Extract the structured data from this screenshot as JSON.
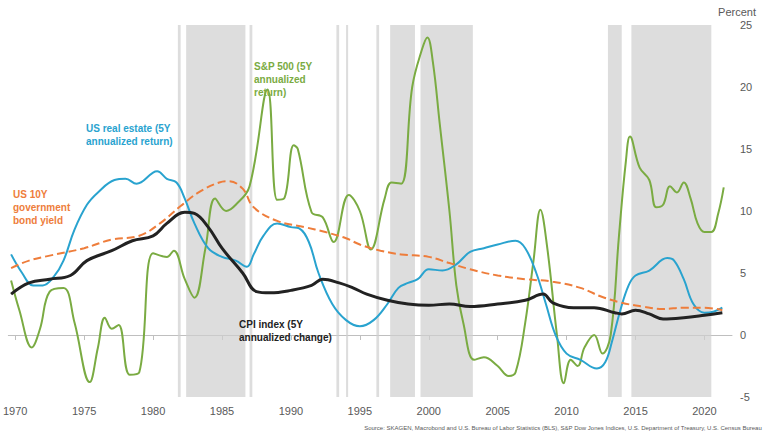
{
  "chart_data": {
    "type": "line",
    "y_label": "Percent",
    "source": "Source: SKAGEN, Macrobond and U.S. Bureau of Labor Statistics (BLS), S&P Dow Jones Indices, U.S. Department of Treasury, U.S. Census Bureau",
    "xlim": [
      1969.5,
      2022
    ],
    "xticks": [
      1970,
      1975,
      1980,
      1985,
      1990,
      1995,
      2000,
      2005,
      2010,
      2015,
      2020
    ],
    "ylim": [
      -5,
      25
    ],
    "yticks": [
      -5,
      0,
      5,
      10,
      15,
      20,
      25
    ],
    "grid": false,
    "shaded_periods": [
      [
        1981.8,
        1982.0
      ],
      [
        1982.4,
        1986.7
      ],
      [
        1987.0,
        1987.2
      ],
      [
        1993.3,
        1993.5
      ],
      [
        1994.0,
        1994.15
      ],
      [
        1996.2,
        1996.4
      ],
      [
        1997.2,
        1999.0
      ],
      [
        1999.4,
        2003.2
      ],
      [
        2013.0,
        2014.0
      ],
      [
        2014.7,
        2020.5
      ]
    ],
    "series": [
      {
        "name": "S&P 500 (5Y annualized return)",
        "color": "#7aab42",
        "line_style": "solid",
        "x": [
          1969.7,
          1970.3,
          1971.2,
          1971.8,
          1972.5,
          1973.5,
          1974.3,
          1975.4,
          1976.0,
          1976.5,
          1977.0,
          1977.5,
          1978.3,
          1979.0,
          1980.0,
          1981.0,
          1981.5,
          1982.3,
          1983.0,
          1983.8,
          1984.5,
          1985.3,
          1986.0,
          1987.0,
          1988.3,
          1989.0,
          1989.5,
          1990.2,
          1990.5,
          1991.5,
          1992.3,
          1993.1,
          1994.2,
          1995.0,
          1995.8,
          1996.8,
          1997.3,
          1998.0,
          1998.8,
          1999.5,
          1999.9,
          2000.3,
          2000.8,
          2001.5,
          2002.0,
          2002.5,
          2003.3,
          2004.0,
          2005.0,
          2005.8,
          2006.3,
          2007.0,
          2007.6,
          2008.1,
          2008.6,
          2009.3,
          2009.8,
          2010.3,
          2010.8,
          2011.3,
          2012.0,
          2012.6,
          2013.2,
          2013.8,
          2014.3,
          2014.6,
          2015.3,
          2016.0,
          2016.5,
          2017.0,
          2017.5,
          2018.0,
          2018.5,
          2019.0,
          2019.5,
          2020.0,
          2020.5,
          2021.0,
          2021.4
        ],
        "values": [
          4.4,
          2.0,
          -1.0,
          0.5,
          3.5,
          3.8,
          1.0,
          -3.8,
          -1.0,
          1.4,
          0.5,
          0.8,
          -3.2,
          -3.0,
          6.6,
          6.3,
          6.8,
          4.5,
          3.0,
          7.0,
          11.0,
          10.0,
          10.5,
          12.0,
          19.8,
          10.9,
          11.0,
          15.3,
          15.0,
          9.9,
          9.5,
          7.5,
          11.3,
          10.0,
          6.9,
          11.0,
          12.3,
          12.2,
          20.0,
          23.0,
          24.0,
          22.0,
          17.0,
          10.0,
          4.0,
          1.0,
          -2.0,
          -1.8,
          -2.5,
          -3.3,
          -3.0,
          1.0,
          6.0,
          10.1,
          7.0,
          0.0,
          -3.9,
          -2.0,
          -2.5,
          -1.0,
          0.0,
          -1.5,
          0.0,
          8.0,
          14.0,
          16.0,
          13.5,
          12.5,
          10.3,
          10.5,
          12.0,
          11.5,
          12.3,
          11.0,
          9.0,
          8.3,
          8.3,
          9.8,
          11.9
        ]
      },
      {
        "name": "US real estate (5Y annualized return)",
        "color": "#29a3cf",
        "line_style": "solid",
        "x": [
          1969.7,
          1970.5,
          1971.3,
          1972.0,
          1972.8,
          1973.5,
          1974.3,
          1975.2,
          1976.0,
          1977.2,
          1978.0,
          1978.8,
          1980.0,
          1980.3,
          1981.0,
          1981.7,
          1982.3,
          1983.0,
          1984.0,
          1985.0,
          1986.0,
          1986.8,
          1987.3,
          1988.0,
          1989.0,
          1990.0,
          1990.6,
          1991.3,
          1992.0,
          1993.0,
          1994.0,
          1995.0,
          1996.0,
          1997.0,
          1997.8,
          1998.5,
          1999.2,
          2000.0,
          2001.0,
          2002.0,
          2003.0,
          2004.0,
          2005.0,
          2006.3,
          2007.0,
          2007.8,
          2008.5,
          2009.2,
          2010.0,
          2011.0,
          2012.2,
          2012.8,
          2013.3,
          2013.9,
          2014.5,
          2015.0,
          2016.0,
          2017.3,
          2017.8,
          2018.5,
          2019.2,
          2020.0,
          2020.7,
          2021.3
        ],
        "values": [
          6.5,
          5.0,
          4.0,
          4.0,
          4.7,
          6.0,
          8.5,
          10.5,
          11.5,
          12.5,
          12.6,
          12.2,
          13.1,
          13.2,
          12.6,
          12.3,
          11.0,
          9.0,
          7.0,
          6.3,
          6.0,
          5.5,
          6.5,
          8.0,
          9.0,
          8.7,
          8.6,
          7.5,
          5.0,
          2.5,
          1.2,
          0.7,
          1.2,
          2.5,
          3.8,
          4.2,
          4.5,
          5.3,
          5.2,
          5.7,
          6.7,
          7.0,
          7.3,
          7.6,
          7.0,
          5.0,
          2.5,
          0.0,
          -1.5,
          -2.0,
          -2.7,
          -2.2,
          -0.5,
          2.0,
          4.0,
          4.8,
          5.2,
          6.2,
          6.0,
          4.5,
          2.5,
          1.8,
          1.9,
          2.2
        ]
      },
      {
        "name": "US 10Y government bond yield",
        "color": "#ee7d3b",
        "line_style": "dashed",
        "x": [
          1969.7,
          1971.0,
          1972.5,
          1975.0,
          1977.0,
          1979.0,
          1980.5,
          1982.0,
          1983.3,
          1984.8,
          1985.5,
          1986.5,
          1987.3,
          1989.0,
          1991.0,
          1992.5,
          1994.0,
          1995.0,
          1996.5,
          1998.0,
          2000.0,
          2001.5,
          2003.0,
          2005.0,
          2007.0,
          2009.0,
          2011.0,
          2012.5,
          2014.0,
          2015.5,
          2017.0,
          2018.5,
          2020.0,
          2021.3
        ],
        "values": [
          5.4,
          6.0,
          6.4,
          7.0,
          7.7,
          8.0,
          9.0,
          10.4,
          11.5,
          12.3,
          12.4,
          11.8,
          10.3,
          9.2,
          8.7,
          8.3,
          7.8,
          7.3,
          6.8,
          6.5,
          6.3,
          5.8,
          5.3,
          4.8,
          4.5,
          4.3,
          3.8,
          3.1,
          2.6,
          2.3,
          2.1,
          2.2,
          2.2,
          2.0
        ]
      },
      {
        "name": "CPI index (5Y annualized change)",
        "color": "#222222",
        "line_style": "solid",
        "x": [
          1969.7,
          1971.0,
          1972.5,
          1974.0,
          1975.2,
          1977.0,
          1978.5,
          1980.0,
          1981.0,
          1982.3,
          1983.0,
          1984.0,
          1985.0,
          1986.5,
          1987.5,
          1988.5,
          1990.0,
          1991.5,
          1992.3,
          1993.5,
          1994.5,
          1995.5,
          1997.0,
          1998.5,
          2000.0,
          2001.5,
          2003.0,
          2005.0,
          2007.0,
          2008.3,
          2009.0,
          2010.5,
          2012.0,
          2013.5,
          2014.0,
          2015.0,
          2016.0,
          2017.0,
          2018.5,
          2020.0,
          2021.3
        ],
        "values": [
          3.3,
          4.2,
          4.5,
          4.8,
          6.0,
          6.8,
          7.6,
          8.0,
          9.0,
          9.9,
          9.8,
          8.7,
          7.0,
          5.0,
          3.5,
          3.4,
          3.6,
          4.0,
          4.5,
          4.2,
          3.8,
          3.3,
          2.8,
          2.5,
          2.4,
          2.5,
          2.3,
          2.5,
          2.8,
          3.3,
          2.6,
          2.2,
          2.2,
          1.8,
          1.7,
          2.0,
          1.7,
          1.3,
          1.4,
          1.6,
          1.8
        ]
      }
    ]
  }
}
